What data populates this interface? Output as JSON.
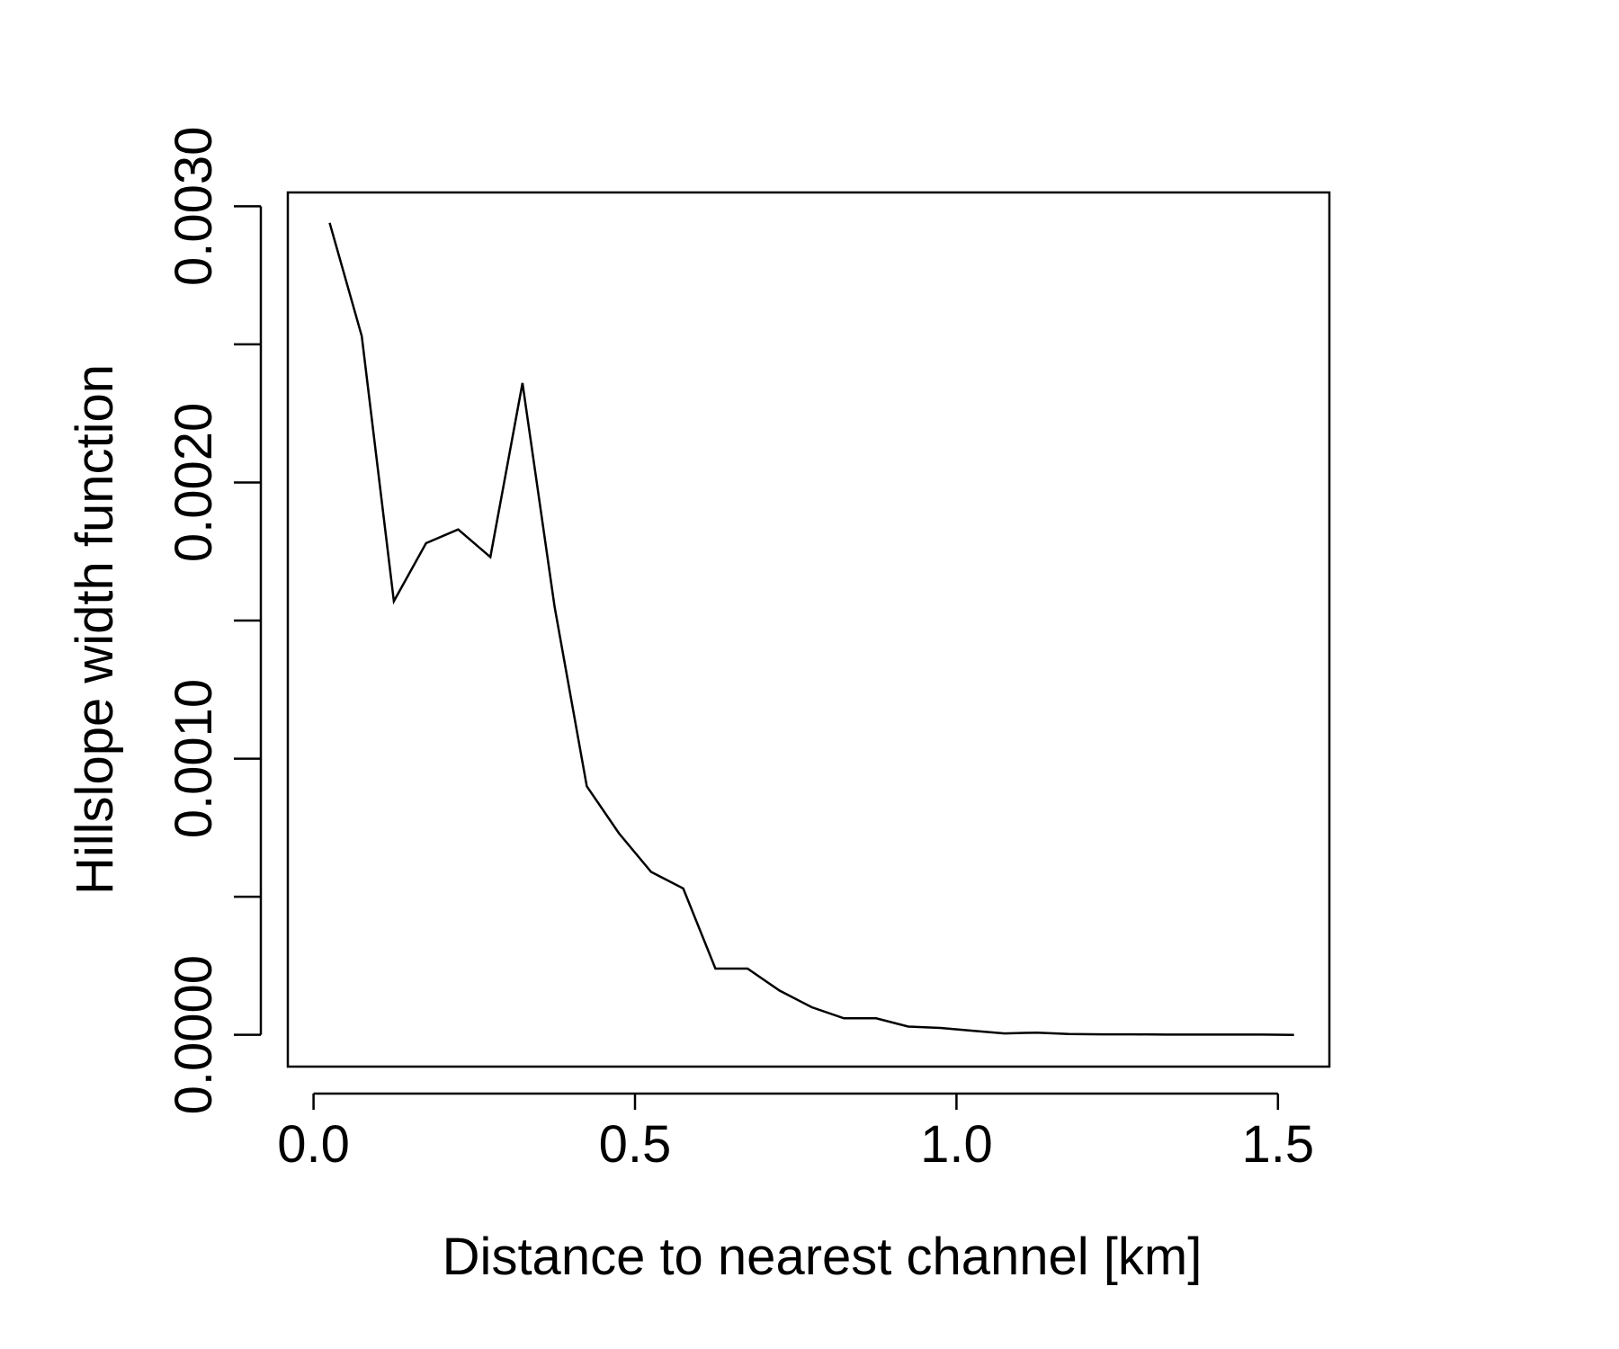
{
  "chart_data": {
    "type": "line",
    "xlabel": "Distance to nearest channel [km]",
    "ylabel": "Hillslope width function",
    "xlim": [
      -0.04,
      1.58
    ],
    "ylim": [
      -0.000115,
      0.00305
    ],
    "x_ticks": [
      0.0,
      0.5,
      1.0,
      1.5
    ],
    "x_tick_labels": [
      "0.0",
      "0.5",
      "1.0",
      "1.5"
    ],
    "y_ticks": [
      0.0,
      0.0005,
      0.001,
      0.0015,
      0.002,
      0.0025,
      0.003
    ],
    "y_tick_labels": [
      "0.0000",
      "",
      "0.0010",
      "",
      "0.0020",
      "",
      "0.0030"
    ],
    "grid": false,
    "line_color": "#000000",
    "series": [
      {
        "x": [
          0.025,
          0.075,
          0.125,
          0.175,
          0.225,
          0.275,
          0.325,
          0.375,
          0.425,
          0.475,
          0.525,
          0.575,
          0.625,
          0.675,
          0.725,
          0.775,
          0.825,
          0.875,
          0.925,
          0.975,
          1.025,
          1.075,
          1.125,
          1.175,
          1.225,
          1.275,
          1.325,
          1.375,
          1.425,
          1.475,
          1.525
        ],
        "values": [
          0.00294,
          0.00253,
          0.00157,
          0.00178,
          0.00183,
          0.00173,
          0.00236,
          0.00155,
          0.0009,
          0.00073,
          0.00059,
          0.00053,
          0.00024,
          0.00024,
          0.00016,
          0.0001,
          6e-05,
          6e-05,
          3e-05,
          2.5e-05,
          1.5e-05,
          5e-06,
          8e-06,
          3e-06,
          2e-06,
          2e-06,
          1e-06,
          1e-06,
          1e-06,
          1e-06,
          0.0
        ]
      }
    ]
  }
}
